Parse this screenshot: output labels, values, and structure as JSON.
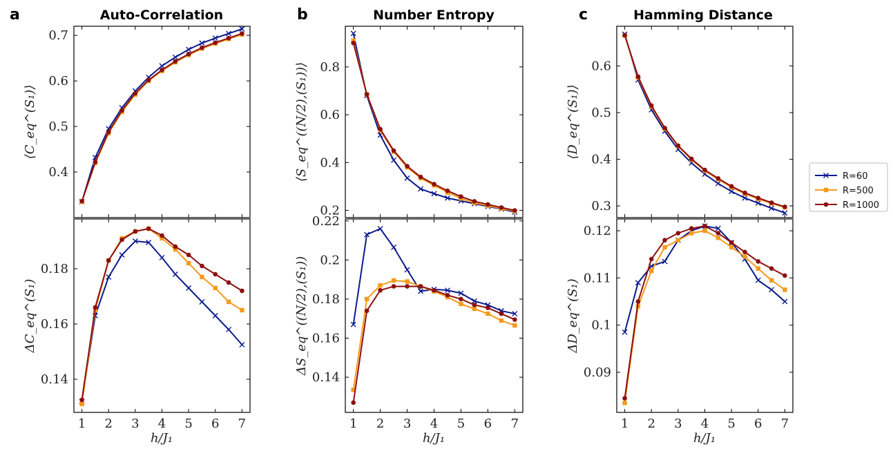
{
  "panels": [
    {
      "letter": "a",
      "title": "Auto-Correlation"
    },
    {
      "letter": "b",
      "title": "Number Entropy"
    },
    {
      "letter": "c",
      "title": "Hamming Distance"
    }
  ],
  "xlabel": "h/J₁",
  "legend": [
    {
      "name": "R=60",
      "color": "#0a1a8c",
      "marker": "x"
    },
    {
      "name": "R=500",
      "color": "#f59a1c",
      "marker": "square"
    },
    {
      "name": "R=1000",
      "color": "#8c0f0f",
      "marker": "circle"
    }
  ],
  "chart_data": [
    {
      "type": "line",
      "panel": "a",
      "subplot": "top",
      "ylabel": "⟨C_eq^(S₁)⟩",
      "x": [
        1,
        1.5,
        2,
        2.5,
        3,
        3.5,
        4,
        4.5,
        5,
        5.5,
        6,
        6.5,
        7
      ],
      "xlim": [
        0.7,
        7.3
      ],
      "ylim": [
        0.3,
        0.72
      ],
      "xticks": [
        1,
        2,
        3,
        4,
        5,
        6,
        7
      ],
      "yticks": [
        0.4,
        0.5,
        0.6,
        0.7
      ],
      "series": [
        {
          "name": "R=60",
          "values": [
            0.335,
            0.432,
            0.495,
            0.541,
            0.578,
            0.608,
            0.633,
            0.652,
            0.669,
            0.683,
            0.694,
            0.704,
            0.714
          ]
        },
        {
          "name": "R=500",
          "values": [
            0.335,
            0.42,
            0.485,
            0.532,
            0.57,
            0.6,
            0.622,
            0.641,
            0.657,
            0.671,
            0.682,
            0.692,
            0.702
          ]
        },
        {
          "name": "R=1000",
          "values": [
            0.336,
            0.422,
            0.488,
            0.535,
            0.573,
            0.602,
            0.624,
            0.643,
            0.659,
            0.673,
            0.684,
            0.694,
            0.704
          ]
        }
      ]
    },
    {
      "type": "line",
      "panel": "a",
      "subplot": "bottom",
      "ylabel": "ΔC_eq^(S₁)",
      "x": [
        1,
        1.5,
        2,
        2.5,
        3,
        3.5,
        4,
        4.5,
        5,
        5.5,
        6,
        6.5,
        7
      ],
      "xlim": [
        0.7,
        7.3
      ],
      "ylim": [
        0.128,
        0.198
      ],
      "xticks": [
        1,
        2,
        3,
        4,
        5,
        6,
        7
      ],
      "yticks": [
        0.14,
        0.16,
        0.18
      ],
      "series": [
        {
          "name": "R=60",
          "values": [
            0.132,
            0.163,
            0.177,
            0.185,
            0.19,
            0.1895,
            0.184,
            0.178,
            0.173,
            0.168,
            0.163,
            0.158,
            0.1525
          ]
        },
        {
          "name": "R=500",
          "values": [
            0.131,
            0.165,
            0.183,
            0.191,
            0.1935,
            0.1945,
            0.191,
            0.187,
            0.182,
            0.177,
            0.173,
            0.168,
            0.165
          ]
        },
        {
          "name": "R=1000",
          "values": [
            0.1325,
            0.166,
            0.183,
            0.1905,
            0.1935,
            0.1945,
            0.192,
            0.188,
            0.185,
            0.181,
            0.178,
            0.175,
            0.172
          ]
        }
      ]
    },
    {
      "type": "line",
      "panel": "b",
      "subplot": "top",
      "ylabel": "⟨S_eq^((N/2),(S₁))⟩",
      "x": [
        1,
        1.5,
        2,
        2.5,
        3,
        3.5,
        4,
        4.5,
        5,
        5.5,
        6,
        6.5,
        7
      ],
      "xlim": [
        0.7,
        7.3
      ],
      "ylim": [
        0.17,
        0.97
      ],
      "xticks": [
        1,
        2,
        3,
        4,
        5,
        6,
        7
      ],
      "yticks": [
        0.2,
        0.4,
        0.6,
        0.8
      ],
      "series": [
        {
          "name": "R=60",
          "values": [
            0.94,
            0.68,
            0.515,
            0.41,
            0.335,
            0.29,
            0.27,
            0.252,
            0.24,
            0.228,
            0.217,
            0.206,
            0.193
          ]
        },
        {
          "name": "R=500",
          "values": [
            0.91,
            0.685,
            0.535,
            0.445,
            0.38,
            0.335,
            0.305,
            0.275,
            0.25,
            0.232,
            0.22,
            0.208,
            0.197
          ]
        },
        {
          "name": "R=1000",
          "values": [
            0.9,
            0.685,
            0.54,
            0.45,
            0.385,
            0.34,
            0.31,
            0.282,
            0.258,
            0.238,
            0.225,
            0.212,
            0.2
          ]
        }
      ]
    },
    {
      "type": "line",
      "panel": "b",
      "subplot": "bottom",
      "ylabel": "ΔS_eq^((N/2),(S₁))",
      "x": [
        1,
        1.5,
        2,
        2.5,
        3,
        3.5,
        4,
        4.5,
        5,
        5.5,
        6,
        6.5,
        7
      ],
      "xlim": [
        0.7,
        7.3
      ],
      "ylim": [
        0.122,
        0.221
      ],
      "xticks": [
        1,
        2,
        3,
        4,
        5,
        6,
        7
      ],
      "yticks": [
        0.14,
        0.16,
        0.18,
        0.2,
        0.22
      ],
      "series": [
        {
          "name": "R=60",
          "values": [
            0.167,
            0.213,
            0.216,
            0.2065,
            0.195,
            0.184,
            0.185,
            0.1845,
            0.183,
            0.179,
            0.177,
            0.174,
            0.1725
          ]
        },
        {
          "name": "R=500",
          "values": [
            0.1335,
            0.18,
            0.187,
            0.1895,
            0.189,
            0.1865,
            0.184,
            0.181,
            0.1775,
            0.175,
            0.1725,
            0.169,
            0.1665
          ]
        },
        {
          "name": "R=1000",
          "values": [
            0.127,
            0.174,
            0.1845,
            0.1865,
            0.1865,
            0.1865,
            0.1845,
            0.182,
            0.18,
            0.177,
            0.1755,
            0.1725,
            0.1695
          ]
        }
      ]
    },
    {
      "type": "line",
      "panel": "c",
      "subplot": "top",
      "ylabel": "⟨D_eq^(S₁)⟩",
      "x": [
        1,
        1.5,
        2,
        2.5,
        3,
        3.5,
        4,
        4.5,
        5,
        5.5,
        6,
        6.5,
        7
      ],
      "xlim": [
        0.7,
        7.3
      ],
      "ylim": [
        0.275,
        0.685
      ],
      "xticks": [
        1,
        2,
        3,
        4,
        5,
        6,
        7
      ],
      "yticks": [
        0.3,
        0.4,
        0.5,
        0.6
      ],
      "series": [
        {
          "name": "R=60",
          "values": [
            0.668,
            0.57,
            0.506,
            0.46,
            0.421,
            0.392,
            0.368,
            0.348,
            0.331,
            0.317,
            0.306,
            0.295,
            0.285
          ]
        },
        {
          "name": "R=500",
          "values": [
            0.665,
            0.575,
            0.513,
            0.465,
            0.428,
            0.399,
            0.375,
            0.357,
            0.34,
            0.326,
            0.315,
            0.305,
            0.297
          ]
        },
        {
          "name": "R=1000",
          "values": [
            0.666,
            0.577,
            0.515,
            0.467,
            0.429,
            0.401,
            0.377,
            0.359,
            0.342,
            0.328,
            0.317,
            0.307,
            0.298
          ]
        }
      ]
    },
    {
      "type": "line",
      "panel": "c",
      "subplot": "bottom",
      "ylabel": "ΔD_eq^(S₁)",
      "x": [
        1,
        1.5,
        2,
        2.5,
        3,
        3.5,
        4,
        4.5,
        5,
        5.5,
        6,
        6.5,
        7
      ],
      "xlim": [
        0.7,
        7.3
      ],
      "ylim": [
        0.0815,
        0.1225
      ],
      "xticks": [
        1,
        2,
        3,
        4,
        5,
        6,
        7
      ],
      "yticks": [
        0.09,
        0.1,
        0.11,
        0.12
      ],
      "series": [
        {
          "name": "R=60",
          "values": [
            0.0985,
            0.109,
            0.1125,
            0.1135,
            0.118,
            0.12,
            0.121,
            0.1205,
            0.1175,
            0.114,
            0.1095,
            0.1075,
            0.105
          ]
        },
        {
          "name": "R=500",
          "values": [
            0.0835,
            0.104,
            0.1115,
            0.1165,
            0.118,
            0.1195,
            0.12,
            0.1185,
            0.1165,
            0.1145,
            0.112,
            0.1095,
            0.1075
          ]
        },
        {
          "name": "R=1000",
          "values": [
            0.0845,
            0.105,
            0.114,
            0.118,
            0.1195,
            0.1205,
            0.121,
            0.1195,
            0.1175,
            0.1155,
            0.1135,
            0.112,
            0.1105
          ]
        }
      ]
    }
  ]
}
